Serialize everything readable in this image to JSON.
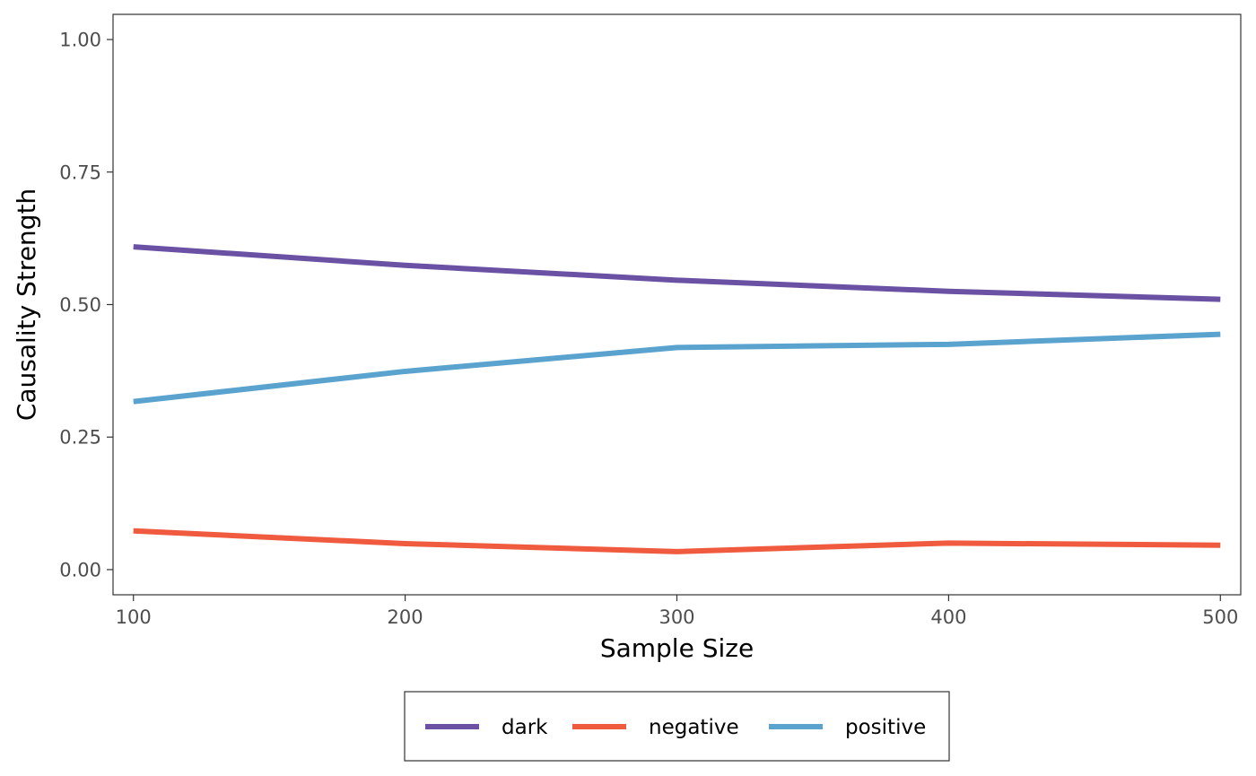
{
  "chart_data": {
    "type": "line",
    "xlabel": "Sample Size",
    "ylabel": "Causality Strength",
    "x": [
      100,
      200,
      300,
      400,
      500
    ],
    "xlim": [
      92.5,
      507.5
    ],
    "ylim": [
      -0.0475,
      1.0475
    ],
    "xticks": [
      100,
      200,
      300,
      400,
      500
    ],
    "xtick_labels": [
      "100",
      "200",
      "300",
      "400",
      "500"
    ],
    "yticks": [
      0,
      0.25,
      0.5,
      0.75,
      1.0
    ],
    "ytick_labels": [
      "0.00",
      "0.25",
      "0.50",
      "0.75",
      "1.00"
    ],
    "grid": false,
    "legend_position": "bottom",
    "series": [
      {
        "name": "dark",
        "color": "#6a51a3",
        "values": [
          0.609,
          0.574,
          0.546,
          0.525,
          0.51
        ]
      },
      {
        "name": "negative",
        "color": "#f05a3e",
        "values": [
          0.073,
          0.049,
          0.034,
          0.05,
          0.046
        ]
      },
      {
        "name": "positive",
        "color": "#5ba3cf",
        "values": [
          0.317,
          0.374,
          0.419,
          0.425,
          0.444
        ]
      }
    ]
  }
}
